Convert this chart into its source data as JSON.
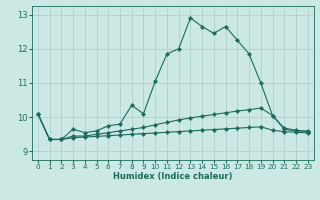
{
  "title": "",
  "xlabel": "Humidex (Indice chaleur)",
  "xlim": [
    -0.5,
    23.5
  ],
  "ylim": [
    8.75,
    13.25
  ],
  "yticks": [
    9,
    10,
    11,
    12,
    13
  ],
  "xticks": [
    0,
    1,
    2,
    3,
    4,
    5,
    6,
    7,
    8,
    9,
    10,
    11,
    12,
    13,
    14,
    15,
    16,
    17,
    18,
    19,
    20,
    21,
    22,
    23
  ],
  "bg_color": "#cce8e5",
  "grid_color": "#aacccc",
  "line_color": "#1a6b5a",
  "lines": [
    {
      "x": [
        0,
        1,
        2,
        3,
        4,
        5,
        6,
        7,
        8,
        9,
        10,
        11,
        12,
        13,
        14,
        15,
        16,
        17,
        18,
        19,
        20,
        21,
        22,
        23
      ],
      "y": [
        10.1,
        9.35,
        9.35,
        9.65,
        9.55,
        9.6,
        9.75,
        9.8,
        10.35,
        10.1,
        11.05,
        11.85,
        12.0,
        12.9,
        12.65,
        12.45,
        12.65,
        12.25,
        11.85,
        11.0,
        10.05,
        9.65,
        9.6,
        9.6
      ]
    },
    {
      "x": [
        0,
        1,
        2,
        3,
        4,
        5,
        6,
        7,
        8,
        9,
        10,
        11,
        12,
        13,
        14,
        15,
        16,
        17,
        18,
        19,
        20,
        21,
        22,
        23
      ],
      "y": [
        10.1,
        9.35,
        9.35,
        9.45,
        9.45,
        9.5,
        9.55,
        9.6,
        9.65,
        9.7,
        9.78,
        9.85,
        9.92,
        9.98,
        10.03,
        10.08,
        10.13,
        10.18,
        10.22,
        10.27,
        10.05,
        9.68,
        9.62,
        9.58
      ]
    },
    {
      "x": [
        0,
        1,
        2,
        3,
        4,
        5,
        6,
        7,
        8,
        9,
        10,
        11,
        12,
        13,
        14,
        15,
        16,
        17,
        18,
        19,
        20,
        21,
        22,
        23
      ],
      "y": [
        10.1,
        9.35,
        9.35,
        9.4,
        9.42,
        9.44,
        9.46,
        9.48,
        9.5,
        9.52,
        9.54,
        9.56,
        9.58,
        9.6,
        9.62,
        9.64,
        9.66,
        9.68,
        9.7,
        9.72,
        9.62,
        9.58,
        9.56,
        9.54
      ]
    }
  ]
}
